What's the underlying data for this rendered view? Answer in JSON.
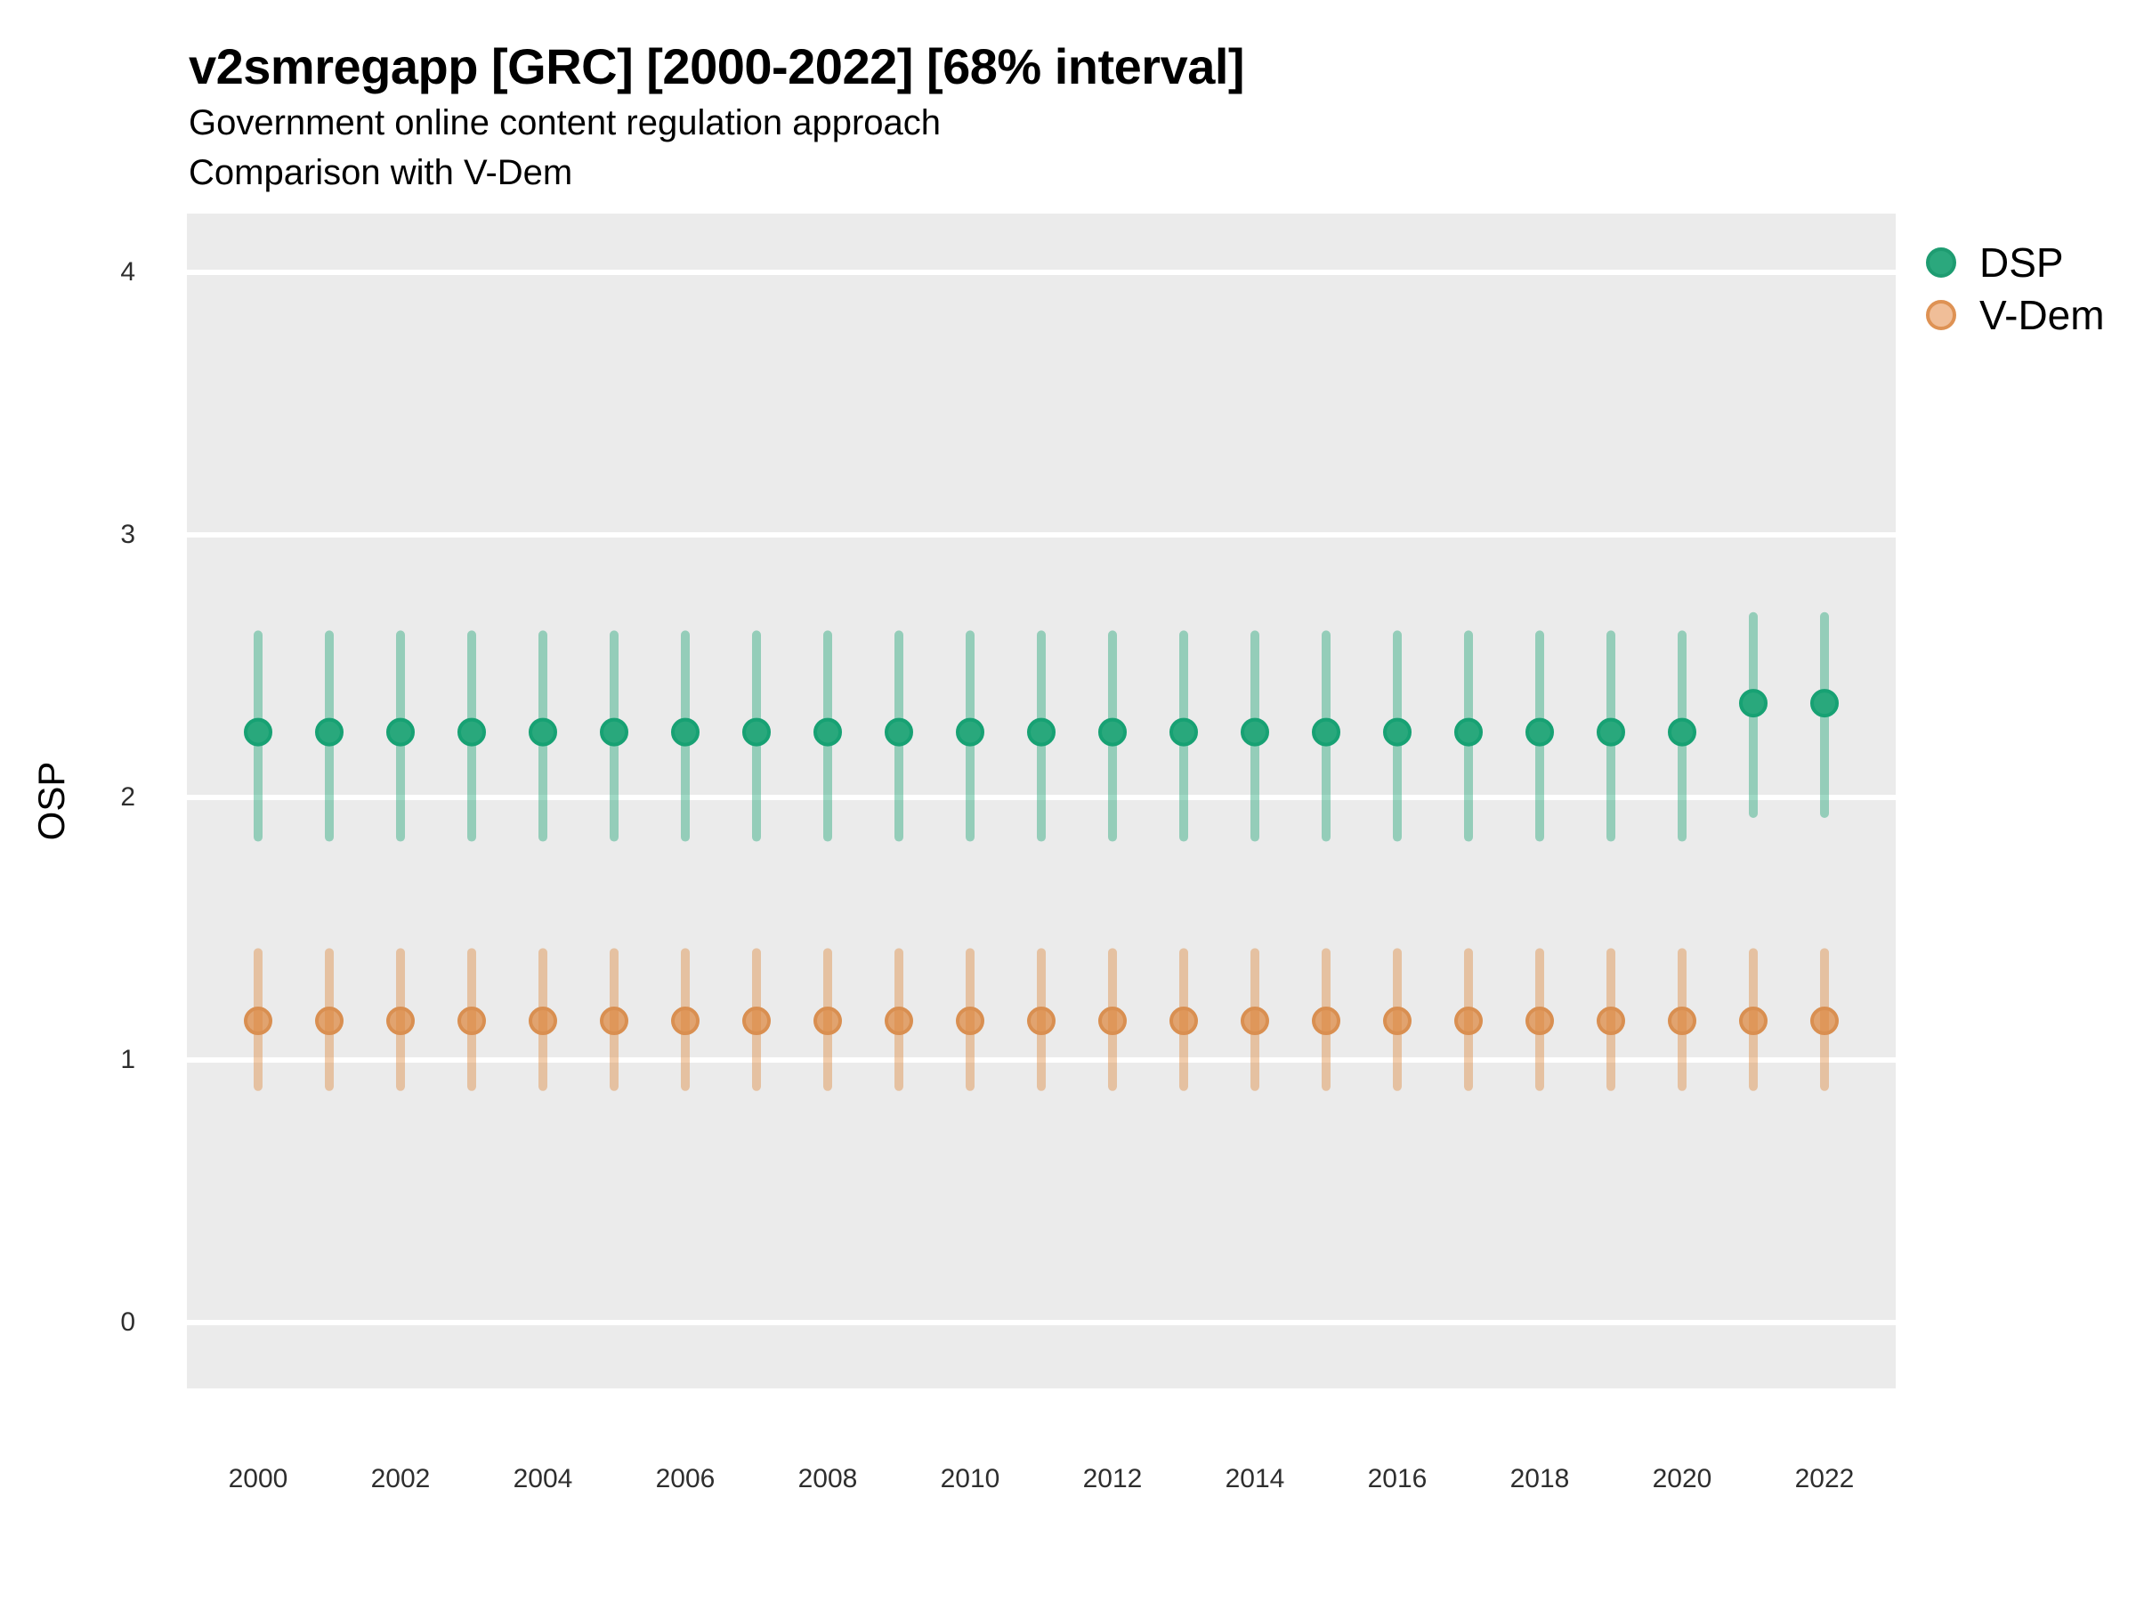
{
  "title": "v2smregapp [GRC] [2000-2022] [68% interval]",
  "subtitle_line1": "Government online content regulation approach",
  "subtitle_line2": "Comparison with V-Dem",
  "y_axis_title": "OSP",
  "legend": {
    "dsp_label": "DSP",
    "vdem_label": "V-Dem"
  },
  "colors": {
    "background": "#FFFFFF",
    "panel_background": "#EBEBEB",
    "gridline": "#FFFFFF",
    "title_text": "#000000",
    "tick_text": "#2E2E2E",
    "dsp_point_fill": "#29A87C",
    "dsp_point_stroke": "#17A173",
    "dsp_interval": "rgba(42,169,125,0.45)",
    "vdem_point_fill": "rgba(220,135,62,0.72)",
    "vdem_point_stroke": "#D98F51",
    "vdem_interval": "rgba(222,137,59,0.42)",
    "legend_dsp_fill": "#2BA87D",
    "legend_dsp_stroke": "#1E9C71",
    "legend_vdem_fill": "#F0BE98",
    "legend_vdem_stroke": "#DE9254"
  },
  "chart_data": {
    "type": "pointrange",
    "title": "v2smregapp [GRC] [2000-2022] [68% interval]",
    "subtitle": "Government online content regulation approach — Comparison with V-Dem",
    "xlabel": "",
    "ylabel": "OSP",
    "x": [
      2000,
      2001,
      2002,
      2003,
      2004,
      2005,
      2006,
      2007,
      2008,
      2009,
      2010,
      2011,
      2012,
      2013,
      2014,
      2015,
      2016,
      2017,
      2018,
      2019,
      2020,
      2021,
      2022
    ],
    "x_tick_years": [
      2000,
      2002,
      2004,
      2006,
      2008,
      2010,
      2012,
      2014,
      2016,
      2018,
      2020,
      2022
    ],
    "y_breaks": [
      0,
      1,
      2,
      3,
      4
    ],
    "xlim": [
      1999,
      2023
    ],
    "ylim": [
      -0.25,
      4.225
    ],
    "grid": "horizontal-major-only",
    "legend_position": "right",
    "interval_level": "68%",
    "series": [
      {
        "name": "DSP",
        "estimates": [
          2.25,
          2.25,
          2.25,
          2.25,
          2.25,
          2.25,
          2.25,
          2.25,
          2.25,
          2.25,
          2.25,
          2.25,
          2.25,
          2.25,
          2.25,
          2.25,
          2.25,
          2.25,
          2.25,
          2.25,
          2.25,
          2.36,
          2.36
        ],
        "lower": [
          1.85,
          1.85,
          1.85,
          1.85,
          1.85,
          1.85,
          1.85,
          1.85,
          1.85,
          1.85,
          1.85,
          1.85,
          1.85,
          1.85,
          1.85,
          1.85,
          1.85,
          1.85,
          1.85,
          1.85,
          1.85,
          1.94,
          1.94
        ],
        "upper": [
          2.62,
          2.62,
          2.62,
          2.62,
          2.62,
          2.62,
          2.62,
          2.62,
          2.62,
          2.62,
          2.62,
          2.62,
          2.62,
          2.62,
          2.62,
          2.62,
          2.62,
          2.62,
          2.62,
          2.62,
          2.62,
          2.69,
          2.69
        ],
        "point_fill_key": "dsp_point_fill",
        "point_stroke_key": "dsp_point_stroke",
        "interval_key": "dsp_interval"
      },
      {
        "name": "V-Dem",
        "estimates": [
          1.15,
          1.15,
          1.15,
          1.15,
          1.15,
          1.15,
          1.15,
          1.15,
          1.15,
          1.15,
          1.15,
          1.15,
          1.15,
          1.15,
          1.15,
          1.15,
          1.15,
          1.15,
          1.15,
          1.15,
          1.15,
          1.15,
          1.15
        ],
        "lower": [
          0.9,
          0.9,
          0.9,
          0.9,
          0.9,
          0.9,
          0.9,
          0.9,
          0.9,
          0.9,
          0.9,
          0.9,
          0.9,
          0.9,
          0.9,
          0.9,
          0.9,
          0.9,
          0.9,
          0.9,
          0.9,
          0.9,
          0.9
        ],
        "upper": [
          1.41,
          1.41,
          1.41,
          1.41,
          1.41,
          1.41,
          1.41,
          1.41,
          1.41,
          1.41,
          1.41,
          1.41,
          1.41,
          1.41,
          1.41,
          1.41,
          1.41,
          1.41,
          1.41,
          1.41,
          1.41,
          1.41,
          1.41
        ],
        "point_fill_key": "vdem_point_fill",
        "point_stroke_key": "vdem_point_stroke",
        "interval_key": "vdem_interval"
      }
    ]
  }
}
